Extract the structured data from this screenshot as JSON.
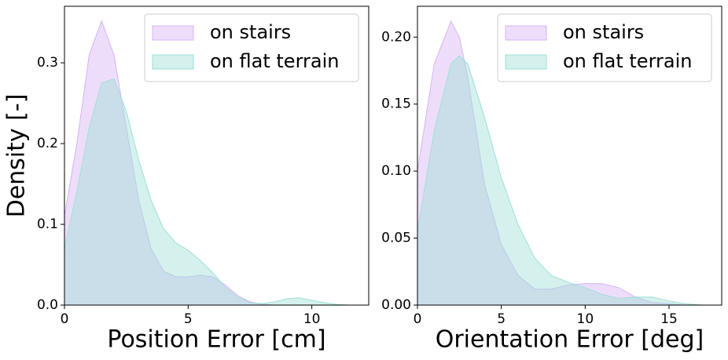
{
  "chart_data": [
    {
      "type": "area",
      "xlabel": "Position Error [cm]",
      "ylabel": "Density [-]",
      "x": [
        0,
        0.5,
        1,
        1.5,
        2,
        2.5,
        3,
        3.5,
        4,
        4.5,
        5,
        5.5,
        6,
        6.5,
        7,
        7.5,
        8,
        8.5,
        9,
        9.5,
        10,
        10.5,
        11,
        11.5,
        12
      ],
      "series": [
        {
          "name": "on stairs",
          "color": "#d6b4f5",
          "values": [
            0.11,
            0.2,
            0.31,
            0.352,
            0.31,
            0.22,
            0.13,
            0.07,
            0.042,
            0.035,
            0.035,
            0.037,
            0.035,
            0.025,
            0.012,
            0.004,
            0.001,
            0,
            0,
            0,
            0,
            0,
            0,
            0,
            0
          ]
        },
        {
          "name": "on flat terrain",
          "color": "#9fe0d6",
          "values": [
            0.07,
            0.14,
            0.22,
            0.275,
            0.28,
            0.24,
            0.18,
            0.13,
            0.095,
            0.077,
            0.068,
            0.055,
            0.04,
            0.022,
            0.01,
            0.003,
            0.002,
            0.004,
            0.008,
            0.009,
            0.006,
            0.003,
            0.001,
            0,
            0
          ]
        }
      ],
      "xlim": [
        0,
        12.3
      ],
      "ylim": [
        0,
        0.37
      ],
      "xticks": [
        0,
        5,
        10
      ],
      "yticks": [
        {
          "value": 0,
          "label": "0.0"
        },
        {
          "value": 0.1,
          "label": "0.1"
        },
        {
          "value": 0.2,
          "label": "0.2"
        },
        {
          "value": 0.3,
          "label": "0.3"
        }
      ],
      "legend": "upper right"
    },
    {
      "type": "area",
      "xlabel": "Orientation Error [deg]",
      "x": [
        0,
        1,
        2,
        2.5,
        3,
        4,
        5,
        6,
        7,
        8,
        9,
        10,
        11,
        12,
        13,
        14,
        15,
        16,
        17,
        18
      ],
      "series": [
        {
          "name": "on stairs",
          "color": "#d6b4f5",
          "values": [
            0.1,
            0.18,
            0.212,
            0.2,
            0.17,
            0.09,
            0.045,
            0.022,
            0.012,
            0.012,
            0.015,
            0.016,
            0.016,
            0.013,
            0.006,
            0.002,
            0.001,
            0,
            0,
            0
          ]
        },
        {
          "name": "on flat terrain",
          "color": "#9fe0d6",
          "values": [
            0.055,
            0.13,
            0.18,
            0.186,
            0.18,
            0.14,
            0.095,
            0.06,
            0.035,
            0.022,
            0.017,
            0.013,
            0.008,
            0.005,
            0.006,
            0.006,
            0.003,
            0.001,
            0,
            0
          ]
        }
      ],
      "xlim": [
        0,
        18.14
      ],
      "ylim": [
        0,
        0.223
      ],
      "xticks": [
        0,
        5,
        10,
        15
      ],
      "yticks": [
        {
          "value": 0,
          "label": "0.00"
        },
        {
          "value": 0.05,
          "label": "0.05"
        },
        {
          "value": 0.1,
          "label": "0.10"
        },
        {
          "value": 0.15,
          "label": "0.15"
        },
        {
          "value": 0.2,
          "label": "0.20"
        }
      ],
      "legend": "upper right"
    }
  ]
}
